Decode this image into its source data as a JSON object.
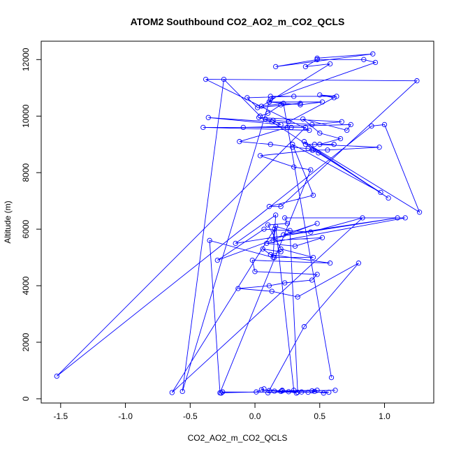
{
  "chart_data": {
    "type": "line",
    "title": "ATOM2 Southbound CO2_AO2_m_CO2_QCLS",
    "xlabel": "CO2_AO2_m_CO2_QCLS",
    "ylabel": "Altitude (m)",
    "xlim": [
      -1.65,
      1.38
    ],
    "ylim": [
      -150,
      12650
    ],
    "xticks": [
      -1.5,
      -1.0,
      -0.5,
      0.0,
      0.5,
      1.0
    ],
    "xtick_labels": [
      "-1.5",
      "-1.0",
      "-0.5",
      "0.0",
      "0.5",
      "1.0"
    ],
    "yticks": [
      0,
      2000,
      4000,
      6000,
      8000,
      10000,
      12000
    ],
    "ytick_labels": [
      "0",
      "2000",
      "4000",
      "6000",
      "8000",
      "10000",
      "12000"
    ],
    "grid": false,
    "series": [
      {
        "color": "#0000ff",
        "marker": "open-circle",
        "x": [
          0.59,
          0.22,
          0.05,
          0.58,
          0.39,
          0.48,
          0.48,
          0.91,
          0.16,
          0.48,
          0.84,
          0.93,
          0.12,
          0.11,
          0.52,
          0.35,
          0.11,
          -0.56,
          -0.24,
          0.04,
          0.1,
          0.2,
          0.35,
          0.02,
          -0.06,
          0.3,
          0.12,
          0.63,
          0.5,
          0.61,
          0.26,
          0.08,
          0.14,
          0.2,
          -0.36,
          0.44,
          0.67,
          0.03,
          0.13,
          1.03,
          0.38,
          1.27,
          1.0,
          0.9,
          -1.53,
          0.39,
          0.28,
          -0.09,
          0.74,
          0.71,
          0.37,
          0.5,
          0.66,
          0.5,
          0.39,
          0.61,
          0.46,
          0.96,
          0.56,
          0.44,
          0.49,
          0.97,
          0.29,
          0.45,
          0.11,
          0.2,
          1.25,
          -0.38,
          0.42,
          -0.4,
          0.25,
          -0.12,
          0.12,
          0.29,
          0.41,
          0.45,
          0.04,
          0.3,
          0.43,
          -0.27,
          -0.35,
          0.14,
          0.16,
          -0.15,
          1.1,
          0.22,
          0.48,
          -0.29,
          0.07,
          0.43,
          0.83,
          -0.64,
          0.15,
          0.14,
          0.52,
          0.31,
          0.09,
          1.16,
          0.23,
          0.25,
          0.1,
          0.2,
          0.45,
          0.15,
          0.06,
          0.2,
          0.12,
          0.58,
          -0.02,
          0.0,
          0.48,
          0.44,
          0.23,
          0.11,
          -0.13,
          0.13,
          0.33,
          0.8,
          0.38,
          0.1,
          0.3,
          0.16,
          0.27,
          0.33,
          0.26,
          0.32,
          0.21,
          0.36,
          0.05,
          0.07,
          0.01,
          -0.27,
          -0.26,
          -0.25,
          0.41,
          0.46,
          0.48,
          0.21,
          0.11,
          0.2,
          0.57,
          0.53,
          0.44,
          0.62,
          0.15
        ],
        "y": [
          750,
          10450,
          10350,
          11850,
          11750,
          12000,
          12050,
          12200,
          11750,
          12000,
          12000,
          11900,
          10600,
          10500,
          10500,
          10400,
          10500,
          260,
          11300,
          10000,
          10100,
          10400,
          10450,
          10300,
          10650,
          10700,
          10700,
          10700,
          10750,
          10650,
          9800,
          9900,
          9850,
          9700,
          9950,
          9700,
          9800,
          9950,
          9800,
          7100,
          9100,
          6600,
          9700,
          9650,
          800,
          9600,
          9600,
          9600,
          9700,
          9500,
          9900,
          9400,
          9200,
          9000,
          9000,
          9000,
          9000,
          8900,
          8800,
          8800,
          8700,
          7300,
          9000,
          7200,
          6800,
          6800,
          11250,
          11300,
          9500,
          9600,
          9600,
          9100,
          9000,
          8900,
          8850,
          8800,
          8600,
          8200,
          8100,
          210,
          5600,
          5000,
          6500,
          5500,
          6400,
          5800,
          6200,
          4900,
          6000,
          5900,
          6400,
          220,
          6000,
          5600,
          5700,
          5400,
          5500,
          6400,
          6400,
          6200,
          6150,
          5300,
          5000,
          5000,
          5300,
          5200,
          5100,
          4800,
          4900,
          4500,
          4400,
          4200,
          4100,
          4000,
          3900,
          3800,
          3600,
          4800,
          2550,
          210,
          300,
          6100,
          5950,
          230,
          250,
          200,
          300,
          240,
          320,
          350,
          240,
          210,
          200,
          240,
          230,
          260,
          300,
          280,
          290,
          260,
          230,
          200,
          280,
          300,
          270
        ]
      }
    ]
  }
}
